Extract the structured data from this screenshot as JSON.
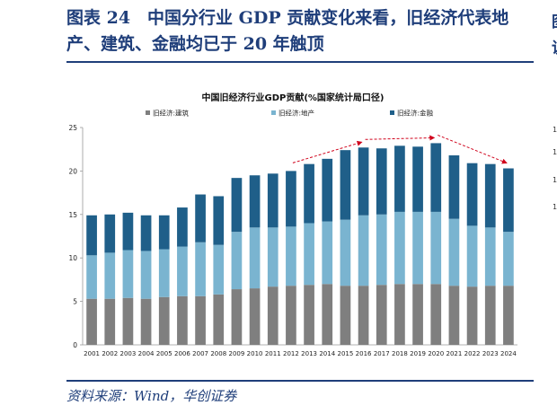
{
  "figure": {
    "title": "图表 24　中国分行业 GDP 贡献变化来看，旧经济代表地产、建筑、金融均已于 20 年触顶",
    "source": "资料来源：Wind，华创证券"
  },
  "adjacent_panel_fragments": {
    "title_glyphs": [
      "图",
      "说"
    ],
    "tick_labels": [
      "1",
      "1",
      "1",
      "1"
    ]
  },
  "chart_data": {
    "type": "bar",
    "stacked": true,
    "title": "中国旧经济行业GDP贡献(%国家统计局口径)",
    "xlabel": "",
    "ylabel": "",
    "ylim": [
      0,
      25
    ],
    "yticks": [
      0,
      5,
      10,
      15,
      20,
      25
    ],
    "grid": false,
    "legend_position": "top",
    "categories": [
      "2001",
      "2002",
      "2003",
      "2004",
      "2005",
      "2006",
      "2007",
      "2008",
      "2009",
      "2010",
      "2011",
      "2012",
      "2013",
      "2014",
      "2015",
      "2016",
      "2017",
      "2018",
      "2019",
      "2020",
      "2021",
      "2022",
      "2023",
      "2024"
    ],
    "series": [
      {
        "name": "旧经济:建筑",
        "color": "#7f7f7f",
        "values": [
          5.3,
          5.3,
          5.4,
          5.3,
          5.5,
          5.6,
          5.6,
          5.8,
          6.4,
          6.5,
          6.7,
          6.8,
          6.9,
          7.0,
          6.8,
          6.8,
          6.9,
          7.0,
          7.0,
          7.0,
          6.8,
          6.7,
          6.8,
          6.8
        ]
      },
      {
        "name": "旧经济:地产",
        "color": "#7ab4d0",
        "values": [
          5.0,
          5.3,
          5.5,
          5.5,
          5.5,
          5.7,
          6.2,
          5.7,
          6.6,
          7.0,
          6.8,
          6.8,
          7.1,
          7.2,
          7.6,
          8.1,
          8.1,
          8.3,
          8.3,
          8.3,
          7.7,
          7.0,
          6.7,
          6.2
        ]
      },
      {
        "name": "旧经济:金融",
        "color": "#1f5f89",
        "values": [
          4.6,
          4.4,
          4.3,
          4.1,
          3.9,
          4.5,
          5.5,
          5.6,
          6.2,
          6.0,
          6.2,
          6.4,
          6.8,
          7.2,
          8.0,
          7.8,
          7.6,
          7.6,
          7.5,
          7.9,
          7.3,
          7.2,
          7.3,
          7.3
        ]
      }
    ],
    "annotations": [
      {
        "type": "trend-arrow",
        "style": "dashed",
        "color": "#d0021b",
        "from": "2012",
        "to": "2016"
      },
      {
        "type": "trend-arrow",
        "style": "dashed",
        "color": "#d0021b",
        "from": "2016",
        "to": "2020"
      },
      {
        "type": "trend-arrow",
        "style": "dashed",
        "color": "#d0021b",
        "from": "2020",
        "to": "2024"
      }
    ]
  }
}
